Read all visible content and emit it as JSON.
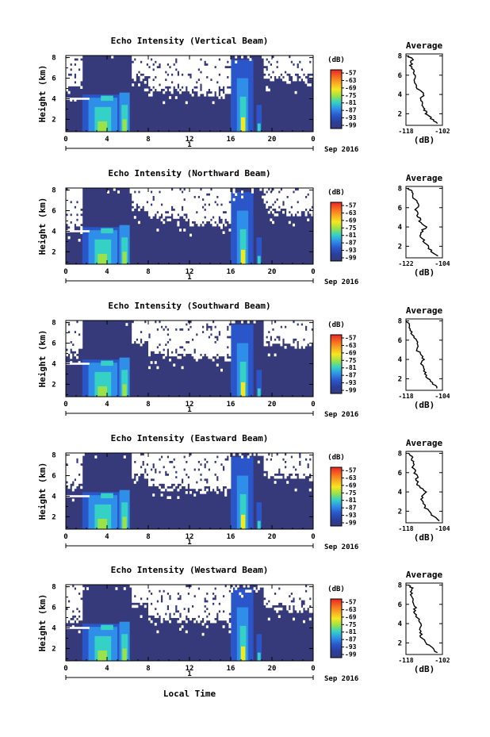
{
  "figure": {
    "xlabel": "Local Time",
    "month_label": "Sep 2016",
    "day_label": "1",
    "colorbar_unit": "(dB)",
    "colorbar_ticks": [
      "-57",
      "-63",
      "-69",
      "-75",
      "-81",
      "-87",
      "-93",
      "-99"
    ],
    "colorbar_colors": [
      "#e8242a",
      "#f7671f",
      "#f9a825",
      "#f6e71f",
      "#9be24a",
      "#36d1c5",
      "#2f8fe8",
      "#2a56c9",
      "#2a3f9c",
      "#363a7a"
    ],
    "background_color": "#363a7a",
    "missing_color": "#ffffff",
    "height_axis_label": "Height (km)",
    "average_title": "Average",
    "average_xlabel": "(dB)"
  },
  "chart_data": [
    {
      "type": "heatmap",
      "title": "Echo Intensity (Vertical Beam)",
      "ylabel": "Height (km)",
      "x_ticks": [
        "0",
        "4",
        "8",
        "12",
        "16",
        "20",
        "0"
      ],
      "y_ticks": [
        "8",
        "6",
        "4",
        "2"
      ],
      "xlim": [
        0,
        24
      ],
      "ylim": [
        0.8,
        8.2
      ],
      "average": {
        "title": "Average",
        "xlim": [
          -118,
          -102
        ],
        "x_ticks": [
          "-118",
          "-102"
        ],
        "y_ticks": [
          "8",
          "6",
          "4",
          "2"
        ],
        "xlabel": "(dB)",
        "profile": [
          [
            -104,
            1.0
          ],
          [
            -107,
            1.5
          ],
          [
            -109,
            2.0
          ],
          [
            -110,
            2.5
          ],
          [
            -111,
            3.0
          ],
          [
            -112,
            3.5
          ],
          [
            -110,
            4.0
          ],
          [
            -113,
            4.6
          ],
          [
            -114,
            5.2
          ],
          [
            -114,
            5.8
          ],
          [
            -115,
            6.4
          ],
          [
            -116,
            7.0
          ],
          [
            -115,
            7.6
          ],
          [
            -117,
            8.0
          ]
        ]
      }
    },
    {
      "type": "heatmap",
      "title": "Echo Intensity (Northward Beam)",
      "ylabel": "Height (km)",
      "x_ticks": [
        "0",
        "4",
        "8",
        "12",
        "16",
        "20",
        "0"
      ],
      "y_ticks": [
        "8",
        "6",
        "4",
        "2"
      ],
      "xlim": [
        0,
        24
      ],
      "ylim": [
        0.8,
        8.2
      ],
      "average": {
        "title": "Average",
        "xlim": [
          -122,
          -104
        ],
        "x_ticks": [
          "-122",
          "-104"
        ],
        "y_ticks": [
          "8",
          "6",
          "4",
          "2"
        ],
        "xlabel": "(dB)",
        "profile": [
          [
            -106,
            1.0
          ],
          [
            -110,
            1.6
          ],
          [
            -112,
            2.2
          ],
          [
            -114,
            2.8
          ],
          [
            -115,
            3.4
          ],
          [
            -112,
            4.0
          ],
          [
            -115,
            4.6
          ],
          [
            -116,
            5.2
          ],
          [
            -117,
            5.8
          ],
          [
            -116,
            6.4
          ],
          [
            -118,
            7.0
          ],
          [
            -119,
            7.6
          ],
          [
            -121,
            8.0
          ]
        ]
      }
    },
    {
      "type": "heatmap",
      "title": "Echo Intensity (Southward Beam)",
      "ylabel": "Height (km)",
      "x_ticks": [
        "0",
        "4",
        "8",
        "12",
        "16",
        "20",
        "0"
      ],
      "y_ticks": [
        "8",
        "6",
        "4",
        "2"
      ],
      "xlim": [
        0,
        24
      ],
      "ylim": [
        0.8,
        8.2
      ],
      "average": {
        "title": "Average",
        "xlim": [
          -118,
          -104
        ],
        "x_ticks": [
          "-118",
          "-104"
        ],
        "y_ticks": [
          "8",
          "6",
          "4",
          "2"
        ],
        "xlabel": "(dB)",
        "profile": [
          [
            -106,
            1.0
          ],
          [
            -108,
            1.6
          ],
          [
            -110,
            2.2
          ],
          [
            -111,
            2.8
          ],
          [
            -112,
            3.4
          ],
          [
            -111,
            4.0
          ],
          [
            -113,
            4.6
          ],
          [
            -114,
            5.2
          ],
          [
            -114,
            5.8
          ],
          [
            -115,
            6.4
          ],
          [
            -116,
            7.0
          ],
          [
            -117,
            7.6
          ],
          [
            -118,
            8.0
          ]
        ]
      }
    },
    {
      "type": "heatmap",
      "title": "Echo Intensity (Eastward Beam)",
      "ylabel": "Height (km)",
      "x_ticks": [
        "0",
        "4",
        "8",
        "12",
        "16",
        "20",
        "0"
      ],
      "y_ticks": [
        "8",
        "6",
        "4",
        "2"
      ],
      "xlim": [
        0,
        24
      ],
      "ylim": [
        0.8,
        8.2
      ],
      "average": {
        "title": "Average",
        "xlim": [
          -118,
          -104
        ],
        "x_ticks": [
          "-118",
          "-104"
        ],
        "y_ticks": [
          "8",
          "6",
          "4",
          "2"
        ],
        "xlabel": "(dB)",
        "profile": [
          [
            -105,
            1.0
          ],
          [
            -108,
            1.6
          ],
          [
            -110,
            2.2
          ],
          [
            -111,
            2.8
          ],
          [
            -112,
            3.4
          ],
          [
            -110,
            4.0
          ],
          [
            -113,
            4.6
          ],
          [
            -114,
            5.2
          ],
          [
            -114,
            5.8
          ],
          [
            -115,
            6.4
          ],
          [
            -115,
            7.0
          ],
          [
            -116,
            7.6
          ],
          [
            -117,
            8.0
          ]
        ]
      }
    },
    {
      "type": "heatmap",
      "title": "Echo Intensity (Westward Beam)",
      "ylabel": "Height (km)",
      "x_ticks": [
        "0",
        "4",
        "8",
        "12",
        "16",
        "20",
        "0"
      ],
      "y_ticks": [
        "8",
        "6",
        "4",
        "2"
      ],
      "xlim": [
        0,
        24
      ],
      "ylim": [
        0.8,
        8.2
      ],
      "average": {
        "title": "Average",
        "xlim": [
          -118,
          -102
        ],
        "x_ticks": [
          "-118",
          "-102"
        ],
        "y_ticks": [
          "8",
          "6",
          "4",
          "2"
        ],
        "xlabel": "(dB)",
        "profile": [
          [
            -104,
            1.0
          ],
          [
            -107,
            1.5
          ],
          [
            -109,
            2.0
          ],
          [
            -111,
            2.6
          ],
          [
            -112,
            3.2
          ],
          [
            -111,
            4.0
          ],
          [
            -113,
            4.6
          ],
          [
            -114,
            5.2
          ],
          [
            -114,
            5.8
          ],
          [
            -115,
            6.4
          ],
          [
            -116,
            7.0
          ],
          [
            -115,
            7.6
          ],
          [
            -117,
            8.0
          ]
        ]
      }
    }
  ]
}
